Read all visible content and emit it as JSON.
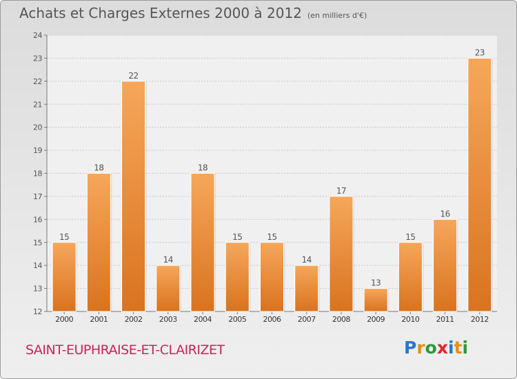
{
  "title": "Achats et Charges Externes 2000 à 2012",
  "subtitle": "(en milliers d'€)",
  "commune": "SAINT-EUPHRAISE-ET-CLAIRIZET",
  "logo": {
    "text": "Proxiti",
    "colors": [
      "#2a77c9",
      "#e58d1a",
      "#2a9a3c",
      "#e1262c",
      "#2a77c9",
      "#e58d1a",
      "#2a9a3c"
    ]
  },
  "colors": {
    "bar_light": "#f6a75a",
    "bar_dark": "#d9731f",
    "grid": "#c8c8c8",
    "plot_bg": "#f0f0f0"
  },
  "chart_data": {
    "type": "bar",
    "categories": [
      "2000",
      "2001",
      "2002",
      "2003",
      "2004",
      "2005",
      "2006",
      "2007",
      "2008",
      "2009",
      "2010",
      "2011",
      "2012"
    ],
    "values": [
      15,
      18,
      22,
      14,
      18,
      15,
      15,
      14,
      17,
      13,
      15,
      16,
      23
    ],
    "title": "Achats et Charges Externes 2000 à 2012",
    "xlabel": "",
    "ylabel": "",
    "ylim": [
      12,
      24
    ],
    "yticks": [
      "12",
      "13",
      "14",
      "15",
      "16",
      "17",
      "18",
      "19",
      "20",
      "21",
      "22",
      "23",
      "24"
    ],
    "grid": true
  }
}
